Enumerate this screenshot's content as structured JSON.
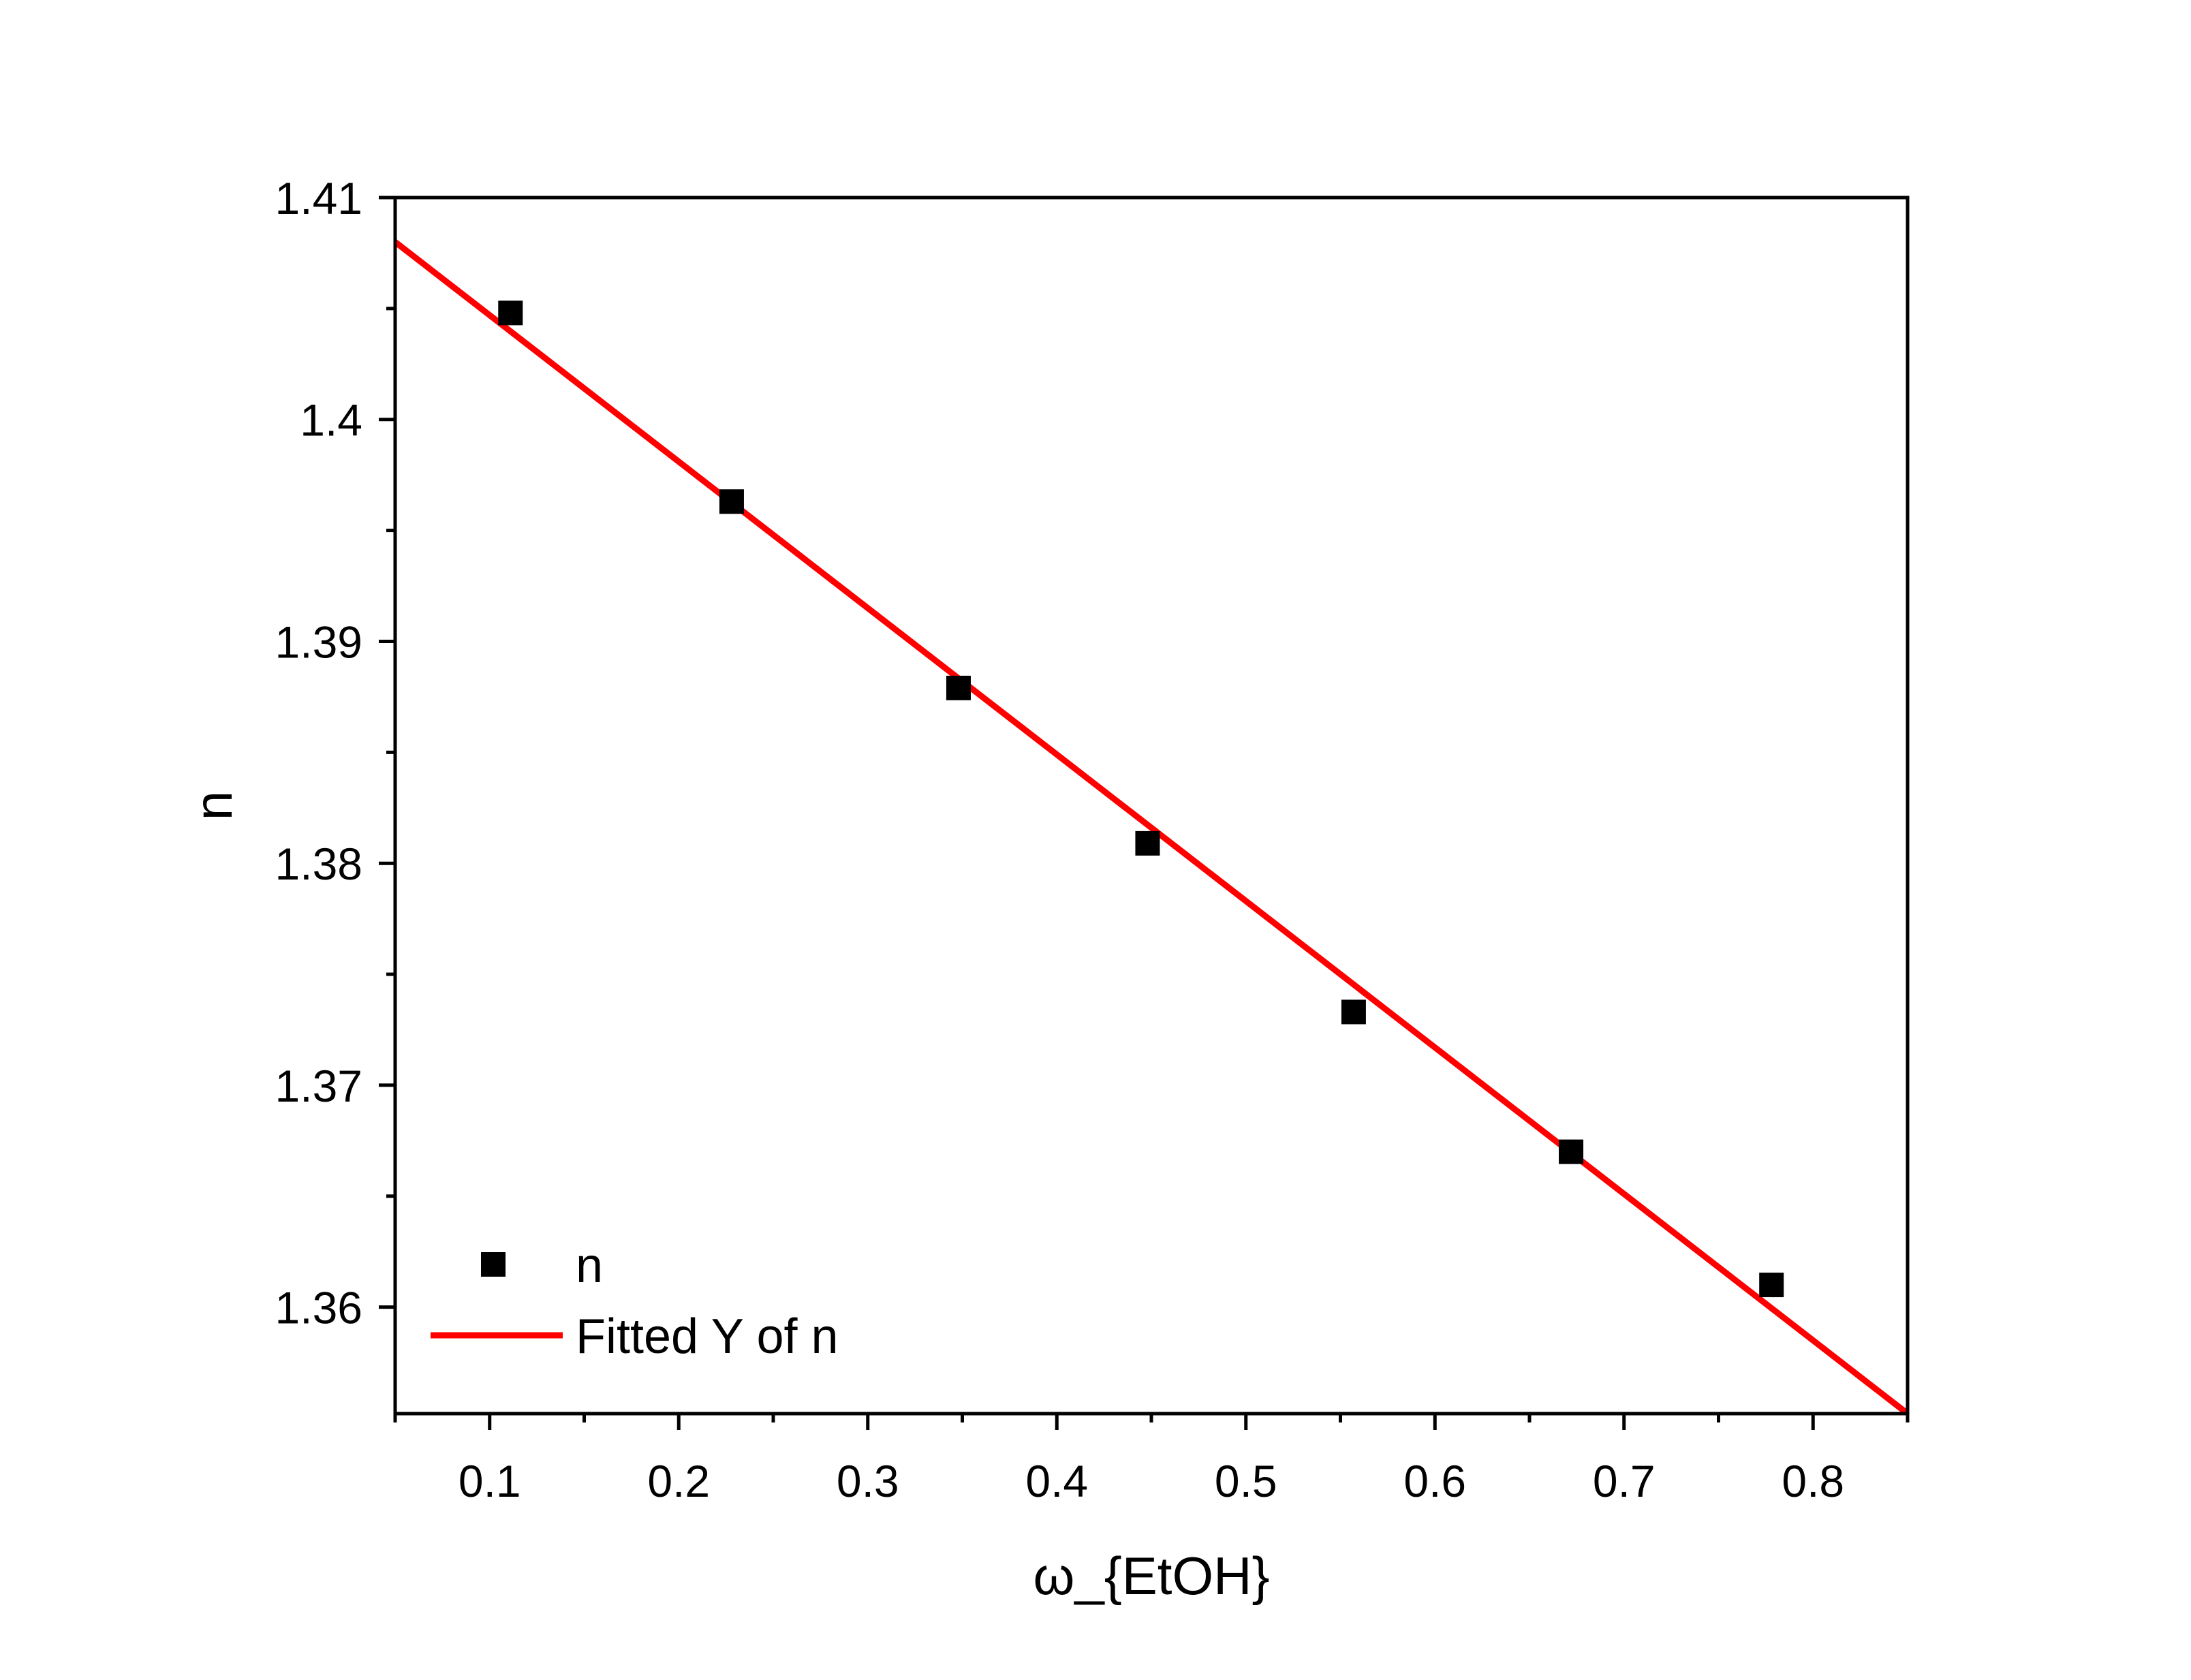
{
  "chart_data": {
    "type": "scatter",
    "title": "",
    "xlabel": "ω_{EtOH}",
    "ylabel": "n",
    "xlim": [
      0.05,
      0.85
    ],
    "ylim": [
      1.3552,
      1.41
    ],
    "x_ticks": [
      "0.1",
      "0.2",
      "0.3",
      "0.4",
      "0.5",
      "0.6",
      "0.7",
      "0.8"
    ],
    "y_ticks": [
      "1.36",
      "1.37",
      "1.38",
      "1.39",
      "1.4",
      "1.41"
    ],
    "grid": false,
    "legend_position": "bottom-left",
    "series": [
      {
        "name": "n",
        "kind": "scatter",
        "marker": "square",
        "color": "#000000",
        "x": [
          0.111,
          0.228,
          0.348,
          0.448,
          0.557,
          0.672,
          0.778
        ],
        "y": [
          1.4048,
          1.3963,
          1.3879,
          1.3809,
          1.3733,
          1.367,
          1.361
        ]
      },
      {
        "name": "Fitted Y of n",
        "kind": "line",
        "color": "#ff0000",
        "x": [
          0.05,
          0.85
        ],
        "y": [
          1.408,
          1.3552
        ]
      }
    ]
  }
}
